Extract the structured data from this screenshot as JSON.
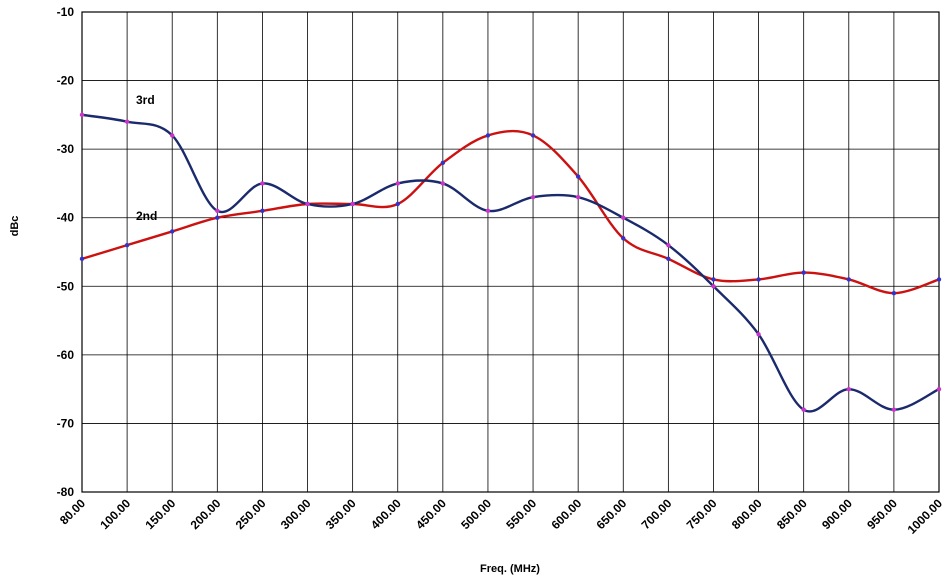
{
  "chart_data": {
    "type": "line",
    "title": "",
    "xlabel": "Freq. (MHz)",
    "ylabel": "dBc",
    "ylim": [
      -80,
      -10
    ],
    "yticks": [
      -10,
      -20,
      -30,
      -40,
      -50,
      -60,
      -70,
      -80
    ],
    "categories": [
      "80.00",
      "100.00",
      "150.00",
      "200.00",
      "250.00",
      "300.00",
      "350.00",
      "400.00",
      "450.00",
      "500.00",
      "550.00",
      "600.00",
      "650.00",
      "700.00",
      "750.00",
      "800.00",
      "850.00",
      "900.00",
      "950.00",
      "1000.00"
    ],
    "grid": true,
    "legend": "none",
    "series": [
      {
        "name": "3rd",
        "color": "#1a2a6c",
        "marker_color": "#cc33cc",
        "values": [
          -25,
          -26,
          -28,
          -39,
          -35,
          -38,
          -38,
          -35,
          -35,
          -39,
          -37,
          -37,
          -40,
          -44,
          -50,
          -57,
          -68,
          -65,
          -68,
          -65
        ]
      },
      {
        "name": "2nd",
        "color": "#cc1111",
        "marker_color": "#3333cc",
        "values": [
          -46,
          -44,
          -42,
          -40,
          -39,
          -38,
          -38,
          -38,
          -32,
          -28,
          -28,
          -34,
          -43,
          -46,
          -49,
          -49,
          -48,
          -49,
          -51,
          -49
        ]
      }
    ]
  }
}
